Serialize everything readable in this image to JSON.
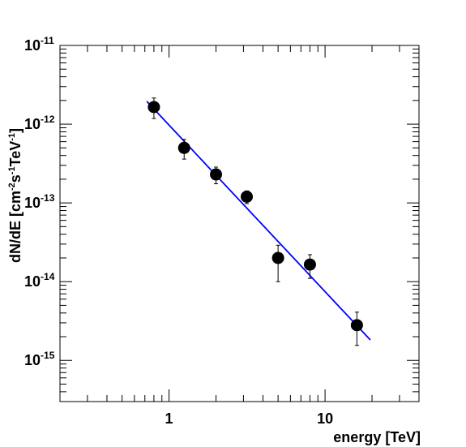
{
  "chart_data": {
    "type": "scatter",
    "title": "",
    "xlabel": "energy [TeV]",
    "ylabel_parts": {
      "base": "dN/dE [cm",
      "exp1": "-2",
      "mid1": "s",
      "exp2": "-1",
      "mid2": "TeV",
      "exp3": "-1",
      "end": "]"
    },
    "xscale": "log",
    "yscale": "log",
    "xlim": [
      0.2,
      40
    ],
    "ylim": [
      3e-16,
      1e-11
    ],
    "grid": false,
    "x_tick_labels": [
      {
        "value": 1,
        "label": "1"
      },
      {
        "value": 10,
        "label": "10"
      }
    ],
    "y_tick_labels": [
      {
        "exp": -11,
        "base": "10",
        "sup": "-11"
      },
      {
        "exp": -12,
        "base": "10",
        "sup": "-12"
      },
      {
        "exp": -13,
        "base": "10",
        "sup": "-13"
      },
      {
        "exp": -14,
        "base": "10",
        "sup": "-14"
      },
      {
        "exp": -15,
        "base": "10",
        "sup": "-15"
      }
    ],
    "series": [
      {
        "points": [
          {
            "x": 0.8,
            "y": 1.65e-12,
            "ylow": 1.18e-12,
            "yhigh": 2.15e-12
          },
          {
            "x": 1.25,
            "y": 5e-13,
            "ylow": 3.6e-13,
            "yhigh": 6.4e-13
          },
          {
            "x": 2.0,
            "y": 2.3e-13,
            "ylow": 1.75e-13,
            "yhigh": 2.85e-13
          },
          {
            "x": 3.15,
            "y": 1.2e-13,
            "ylow": 9.8e-14,
            "yhigh": 1.42e-13
          },
          {
            "x": 5.0,
            "y": 2e-14,
            "ylow": 1e-14,
            "yhigh": 2.9e-14
          },
          {
            "x": 8.0,
            "y": 1.65e-14,
            "ylow": 1.1e-14,
            "yhigh": 2.2e-14
          },
          {
            "x": 16.0,
            "y": 2.8e-15,
            "ylow": 1.55e-15,
            "yhigh": 4.1e-15
          }
        ],
        "color": "#000000"
      }
    ],
    "fit_line": {
      "color": "#0000ff",
      "x": [
        0.72,
        19.5
      ],
      "y": [
        1.95e-12,
        1.82e-15
      ]
    }
  }
}
